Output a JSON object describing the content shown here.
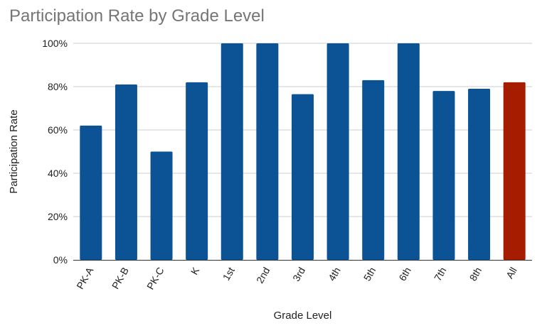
{
  "chart_data": {
    "type": "bar",
    "title": "Participation Rate by Grade Level",
    "xlabel": "Grade Level",
    "ylabel": "Participation Rate",
    "categories": [
      "PK-A",
      "PK-B",
      "PK-C",
      "K",
      "1st",
      "2nd",
      "3rd",
      "4th",
      "5th",
      "6th",
      "7th",
      "8th",
      "All"
    ],
    "values": [
      62,
      81,
      50,
      82,
      100,
      100,
      76.5,
      100,
      83,
      100,
      78,
      79,
      82
    ],
    "ylim": [
      0,
      100
    ],
    "yticks": [
      "0%",
      "20%",
      "40%",
      "60%",
      "80%",
      "100%"
    ],
    "ytick_values": [
      0,
      20,
      40,
      60,
      80,
      100
    ],
    "grid": true,
    "legend": "none",
    "colors": {
      "bar": "#0b5394",
      "highlight_bar": "#a61c00",
      "highlight_category": "All",
      "grid": "#cccccc",
      "axis": "#333333",
      "title": "#757575",
      "text": "#222222"
    }
  }
}
